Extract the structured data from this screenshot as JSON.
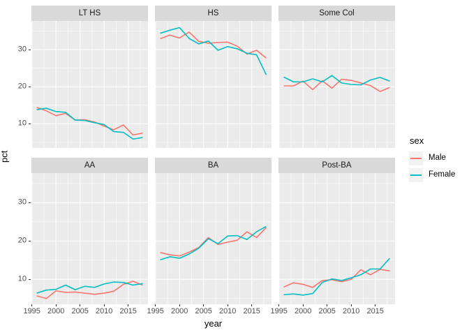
{
  "figure": {
    "background": "#FFFFFF"
  },
  "axes": {
    "x_title": "year",
    "y_title": "pct",
    "x_ticks": [
      1995,
      2000,
      2005,
      2010,
      2015
    ],
    "x_minor": [
      1997.5,
      2002.5,
      2007.5,
      2012.5,
      2017.5
    ],
    "y_ticks": [
      10,
      20,
      30
    ],
    "y_minor": [
      5,
      15,
      25,
      35
    ],
    "x_domain": [
      1994.9,
      2019.1
    ],
    "y_domain": [
      3.5,
      37.7
    ]
  },
  "legend": {
    "title": "sex",
    "entries": [
      {
        "label": "Male",
        "color": "#F8766D"
      },
      {
        "label": "Female",
        "color": "#00BFC4"
      }
    ]
  },
  "style": {
    "panel_bg": "#EBEBEB",
    "strip_bg": "#D9D9D9",
    "grid_color": "#FFFFFF",
    "tick_color": "#333333",
    "axis_text_color": "#4D4D4D",
    "male_color": "#F8766D",
    "female_color": "#00BFC4"
  },
  "chart_data": {
    "type": "line",
    "xlabel": "year",
    "ylabel": "pct",
    "legend_title": "sex",
    "legend_position": "right",
    "grid": true,
    "x": [
      1996,
      1998,
      2000,
      2002,
      2004,
      2006,
      2008,
      2010,
      2012,
      2014,
      2016,
      2018
    ],
    "xlim": [
      1994.9,
      2019.1
    ],
    "ylim": [
      3.5,
      37.7
    ],
    "facets": [
      {
        "label": "LT HS",
        "series": [
          {
            "name": "Male",
            "values": [
              14.4,
              13.5,
              12.2,
              12.8,
              11.0,
              11.1,
              10.5,
              9.4,
              8.4,
              9.7,
              7.0,
              7.5
            ]
          },
          {
            "name": "Female",
            "values": [
              13.8,
              14.2,
              13.3,
              13.1,
              11.0,
              10.9,
              10.3,
              9.8,
              7.9,
              7.7,
              5.9,
              6.3
            ]
          }
        ]
      },
      {
        "label": "HS",
        "series": [
          {
            "name": "Male",
            "values": [
              32.9,
              33.9,
              33.1,
              34.7,
              32.2,
              31.7,
              31.9,
              32.0,
              30.9,
              28.8,
              29.8,
              27.7
            ]
          },
          {
            "name": "Female",
            "values": [
              34.4,
              35.2,
              35.9,
              33.0,
              31.5,
              32.3,
              29.8,
              30.8,
              30.2,
              29.0,
              28.6,
              23.2
            ]
          }
        ]
      },
      {
        "label": "Some Col",
        "series": [
          {
            "name": "Male",
            "values": [
              20.2,
              20.2,
              21.5,
              19.2,
              21.6,
              19.6,
              22.0,
              21.7,
              21.0,
              20.3,
              18.7,
              19.8
            ]
          },
          {
            "name": "Female",
            "values": [
              22.6,
              21.3,
              21.3,
              22.1,
              21.3,
              23.0,
              21.0,
              20.6,
              20.5,
              21.8,
              22.5,
              21.5
            ]
          }
        ]
      },
      {
        "label": "AA",
        "series": [
          {
            "name": "Male",
            "values": [
              5.7,
              5.0,
              7.0,
              6.6,
              6.7,
              6.4,
              6.1,
              6.4,
              6.9,
              8.7,
              9.5,
              8.5
            ]
          },
          {
            "name": "Female",
            "values": [
              6.4,
              7.2,
              7.4,
              8.5,
              7.3,
              8.2,
              7.9,
              8.8,
              9.3,
              9.2,
              8.5,
              8.9
            ]
          }
        ]
      },
      {
        "label": "BA",
        "series": [
          {
            "name": "Male",
            "values": [
              17.0,
              16.4,
              16.1,
              17.1,
              18.3,
              20.9,
              19.1,
              19.7,
              20.2,
              22.4,
              20.9,
              23.5
            ]
          },
          {
            "name": "Female",
            "values": [
              15.1,
              15.9,
              15.5,
              16.6,
              18.1,
              20.6,
              19.3,
              21.3,
              21.4,
              20.4,
              22.4,
              23.8
            ]
          }
        ]
      },
      {
        "label": "Post-BA",
        "series": [
          {
            "name": "Male",
            "values": [
              8.0,
              9.1,
              8.7,
              7.9,
              9.7,
              9.9,
              9.4,
              10.0,
              12.5,
              11.2,
              12.6,
              12.2
            ]
          },
          {
            "name": "Female",
            "values": [
              6.0,
              6.2,
              5.9,
              6.3,
              9.2,
              10.1,
              9.7,
              10.4,
              11.2,
              12.7,
              12.7,
              15.5
            ]
          }
        ]
      }
    ]
  }
}
